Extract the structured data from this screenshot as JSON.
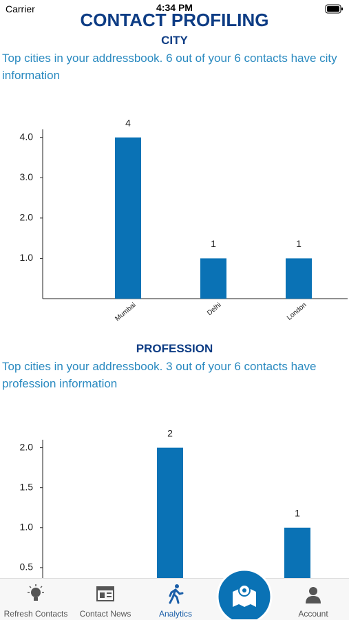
{
  "status": {
    "carrier": "Carrier",
    "time": "4:34 PM"
  },
  "header": {
    "title": "CONTACT PROFILING"
  },
  "chart_data": [
    {
      "type": "bar",
      "title": "CITY",
      "subtitle": "Top cities in your addressbook. 6 out of your 6 contacts have city information",
      "categories": [
        "Mumbai",
        "Delhi",
        "London"
      ],
      "values": [
        4,
        1,
        1
      ],
      "color": "#0a72b5",
      "ylim": [
        0,
        4.2
      ],
      "yticks": [
        {
          "value": 1,
          "label": "1.0"
        },
        {
          "value": 2,
          "label": "2.0"
        },
        {
          "value": 3,
          "label": "3.0"
        },
        {
          "value": 4,
          "label": "4.0"
        }
      ]
    },
    {
      "type": "bar",
      "title": "PROFESSION",
      "subtitle": "Top cities in your addressbook. 3 out of your 6 contacts have profession information",
      "categories": [
        null,
        null
      ],
      "values": [
        2,
        1
      ],
      "color": "#0a72b5",
      "ylim": [
        0,
        2.1
      ],
      "yticks": [
        0.5,
        {
          "value": 1,
          "label": "1.0"
        },
        1.5,
        {
          "value": 2,
          "label": "2.0"
        }
      ]
    }
  ],
  "tabs": [
    {
      "label": "Refresh Contacts"
    },
    {
      "label": "Contact News"
    },
    {
      "label": "Analytics"
    },
    {
      "label": "Account"
    }
  ]
}
